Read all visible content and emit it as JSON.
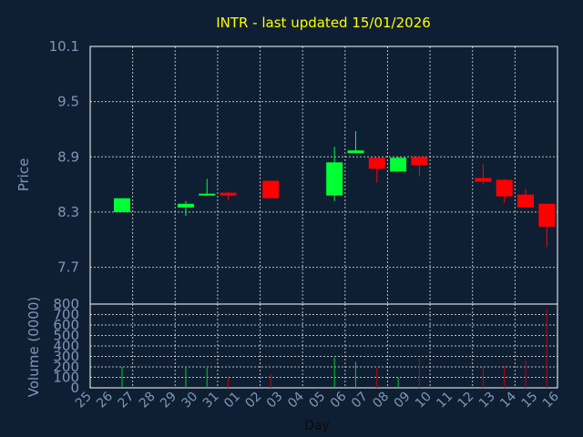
{
  "chart_data": {
    "type": "candlestick",
    "title": "INTR - last updated 15/01/2026",
    "xlabel": "Day",
    "price_ylabel": "Price",
    "volume_ylabel": "Volume (0000)",
    "price_ylim": [
      7.3,
      10.1
    ],
    "price_ticks": [
      "10.1",
      "9.5",
      "8.9",
      "8.3",
      "7.7"
    ],
    "volume_ylim": [
      0,
      800
    ],
    "volume_ticks": [
      "800",
      "700",
      "600",
      "500",
      "400",
      "300",
      "200",
      "100",
      "0"
    ],
    "x_ticks": [
      "25",
      "26",
      "27",
      "28",
      "29",
      "30",
      "31",
      "01",
      "02",
      "03",
      "04",
      "05",
      "06",
      "07",
      "08",
      "09",
      "10",
      "11",
      "12",
      "13",
      "14",
      "15",
      "16"
    ],
    "grid": true,
    "up_color": "#00ff33",
    "down_color": "#ff0000",
    "candles": [
      {
        "day": "26",
        "open": 8.3,
        "close": 8.45,
        "high": 8.45,
        "low": 8.3,
        "volume": 200
      },
      {
        "day": "29",
        "open": 8.35,
        "close": 8.39,
        "high": 8.42,
        "low": 8.26,
        "volume": 200
      },
      {
        "day": "30",
        "open": 8.48,
        "close": 8.5,
        "high": 8.66,
        "low": 8.48,
        "volume": 190
      },
      {
        "day": "31",
        "open": 8.51,
        "close": 8.48,
        "high": 8.52,
        "low": 8.43,
        "volume": 100
      },
      {
        "day": "02",
        "open": 8.64,
        "close": 8.45,
        "high": 8.64,
        "low": 8.45,
        "volume": 130
      },
      {
        "day": "05",
        "open": 8.48,
        "close": 8.84,
        "high": 9.01,
        "low": 8.42,
        "volume": 290
      },
      {
        "day": "06",
        "open": 8.94,
        "close": 8.97,
        "high": 9.18,
        "low": 8.94,
        "volume": 250
      },
      {
        "day": "07",
        "open": 8.89,
        "close": 8.77,
        "high": 8.89,
        "low": 8.62,
        "volume": 190
      },
      {
        "day": "08",
        "open": 8.74,
        "close": 8.89,
        "high": 8.9,
        "low": 8.74,
        "volume": 100
      },
      {
        "day": "09",
        "open": 8.9,
        "close": 8.81,
        "high": 8.91,
        "low": 8.69,
        "volume": 280
      },
      {
        "day": "12",
        "open": 8.67,
        "close": 8.63,
        "high": 8.82,
        "low": 8.6,
        "volume": 200
      },
      {
        "day": "13",
        "open": 8.65,
        "close": 8.47,
        "high": 8.66,
        "low": 8.4,
        "volume": 210
      },
      {
        "day": "14",
        "open": 8.49,
        "close": 8.35,
        "high": 8.55,
        "low": 8.35,
        "volume": 260
      },
      {
        "day": "15",
        "open": 8.39,
        "close": 8.14,
        "high": 8.39,
        "low": 7.92,
        "volume": 760
      }
    ]
  }
}
